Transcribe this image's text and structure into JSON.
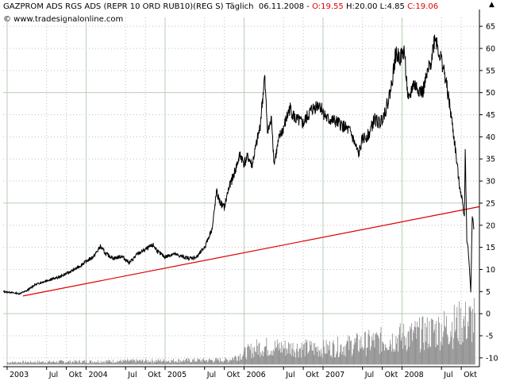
{
  "header": {
    "symbol_text": "GAZPROM ADS RGS ADS (REPR 10 ORD RUB10)(REG S) Täglich",
    "date": "06.11.2008",
    "o_label": "O:19.55",
    "h_label": "H:20.00",
    "l_label": "L:4.85",
    "c_label": "C:19.06",
    "copyright": "© www.tradesignalonline.com"
  },
  "colors": {
    "price": "#000000",
    "trendline": "#dd0000",
    "grid_major": "#b8cdb8",
    "grid_minor": "#bfbfbf",
    "header_red": "#e00000"
  },
  "chart_data": {
    "type": "line",
    "ylim": [
      -12,
      67
    ],
    "y_ticks": [
      65,
      60,
      55,
      50,
      45,
      40,
      35,
      30,
      25,
      20,
      15,
      10,
      5,
      0,
      -5,
      -10
    ],
    "x_range": [
      2002.95,
      2008.98
    ],
    "x_ticks": [
      {
        "x": 2003.0,
        "label": "2003"
      },
      {
        "x": 2003.5,
        "label": "Jul"
      },
      {
        "x": 2003.75,
        "label": "Okt"
      },
      {
        "x": 2004.0,
        "label": "2004"
      },
      {
        "x": 2004.5,
        "label": "Jul"
      },
      {
        "x": 2004.75,
        "label": "Okt"
      },
      {
        "x": 2005.0,
        "label": "2005"
      },
      {
        "x": 2005.5,
        "label": "Jul"
      },
      {
        "x": 2005.75,
        "label": "Okt"
      },
      {
        "x": 2006.0,
        "label": "2006"
      },
      {
        "x": 2006.5,
        "label": "Jul"
      },
      {
        "x": 2006.75,
        "label": "Okt"
      },
      {
        "x": 2007.0,
        "label": "2007"
      },
      {
        "x": 2007.5,
        "label": "Jul"
      },
      {
        "x": 2007.75,
        "label": "Okt"
      },
      {
        "x": 2008.0,
        "label": "2008"
      },
      {
        "x": 2008.5,
        "label": "Jul"
      },
      {
        "x": 2008.75,
        "label": "Okt"
      }
    ],
    "series": [
      {
        "kind": "price",
        "points": [
          [
            2002.95,
            5.0
          ],
          [
            2003.05,
            4.8
          ],
          [
            2003.15,
            4.5
          ],
          [
            2003.25,
            5.2
          ],
          [
            2003.35,
            6.5
          ],
          [
            2003.5,
            7.5
          ],
          [
            2003.65,
            8.2
          ],
          [
            2003.8,
            9.5
          ],
          [
            2003.9,
            10.5
          ],
          [
            2004.0,
            11.8
          ],
          [
            2004.1,
            13.0
          ],
          [
            2004.18,
            15.2
          ],
          [
            2004.25,
            13.5
          ],
          [
            2004.35,
            12.5
          ],
          [
            2004.45,
            13.0
          ],
          [
            2004.55,
            11.5
          ],
          [
            2004.65,
            13.5
          ],
          [
            2004.75,
            14.5
          ],
          [
            2004.85,
            15.5
          ],
          [
            2004.92,
            13.8
          ],
          [
            2005.0,
            12.8
          ],
          [
            2005.1,
            13.5
          ],
          [
            2005.2,
            13.0
          ],
          [
            2005.3,
            12.5
          ],
          [
            2005.4,
            12.8
          ],
          [
            2005.5,
            15.0
          ],
          [
            2005.6,
            19.5
          ],
          [
            2005.65,
            27.5
          ],
          [
            2005.7,
            25.0
          ],
          [
            2005.75,
            24.0
          ],
          [
            2005.8,
            28.0
          ],
          [
            2005.88,
            32.0
          ],
          [
            2005.95,
            36.0
          ],
          [
            2006.0,
            34.0
          ],
          [
            2006.05,
            35.5
          ],
          [
            2006.1,
            33.5
          ],
          [
            2006.2,
            42.0
          ],
          [
            2006.26,
            53.5
          ],
          [
            2006.3,
            41.0
          ],
          [
            2006.35,
            44.0
          ],
          [
            2006.38,
            34.0
          ],
          [
            2006.45,
            40.0
          ],
          [
            2006.5,
            42.0
          ],
          [
            2006.58,
            46.5
          ],
          [
            2006.65,
            44.0
          ],
          [
            2006.75,
            43.0
          ],
          [
            2006.85,
            46.0
          ],
          [
            2006.95,
            47.5
          ],
          [
            2007.05,
            44.0
          ],
          [
            2007.15,
            43.5
          ],
          [
            2007.25,
            42.5
          ],
          [
            2007.35,
            41.0
          ],
          [
            2007.45,
            36.0
          ],
          [
            2007.5,
            39.5
          ],
          [
            2007.58,
            40.5
          ],
          [
            2007.65,
            44.0
          ],
          [
            2007.72,
            43.0
          ],
          [
            2007.8,
            46.5
          ],
          [
            2007.86,
            51.0
          ],
          [
            2007.92,
            58.5
          ],
          [
            2007.98,
            58.0
          ],
          [
            2008.03,
            59.5
          ],
          [
            2008.08,
            47.5
          ],
          [
            2008.14,
            52.0
          ],
          [
            2008.2,
            51.0
          ],
          [
            2008.26,
            50.0
          ],
          [
            2008.32,
            54.0
          ],
          [
            2008.37,
            57.5
          ],
          [
            2008.42,
            63.0
          ],
          [
            2008.47,
            59.0
          ],
          [
            2008.52,
            56.0
          ],
          [
            2008.57,
            51.0
          ],
          [
            2008.62,
            45.0
          ],
          [
            2008.67,
            38.0
          ],
          [
            2008.72,
            30.0
          ],
          [
            2008.76,
            26.0
          ],
          [
            2008.79,
            22.0
          ],
          [
            2008.8,
            38.0
          ],
          [
            2008.82,
            17.0
          ],
          [
            2008.84,
            14.0
          ],
          [
            2008.86,
            8.0
          ],
          [
            2008.87,
            4.85
          ],
          [
            2008.89,
            22.0
          ],
          [
            2008.91,
            19.06
          ]
        ]
      },
      {
        "kind": "trendline",
        "points": [
          [
            2003.2,
            4.0
          ],
          [
            2008.98,
            24.2
          ]
        ]
      },
      {
        "kind": "volume",
        "baseline": -11.5,
        "top": 4.5,
        "start_x": 2003.0,
        "end_x": 2008.93,
        "segments": [
          [
            2003.0,
            0.05
          ],
          [
            2005.8,
            0.1
          ],
          [
            2006.2,
            0.4
          ],
          [
            2007.0,
            0.35
          ],
          [
            2007.8,
            0.55
          ],
          [
            2008.3,
            0.7
          ],
          [
            2008.7,
            0.9
          ],
          [
            2008.93,
            1.0
          ]
        ]
      }
    ]
  }
}
